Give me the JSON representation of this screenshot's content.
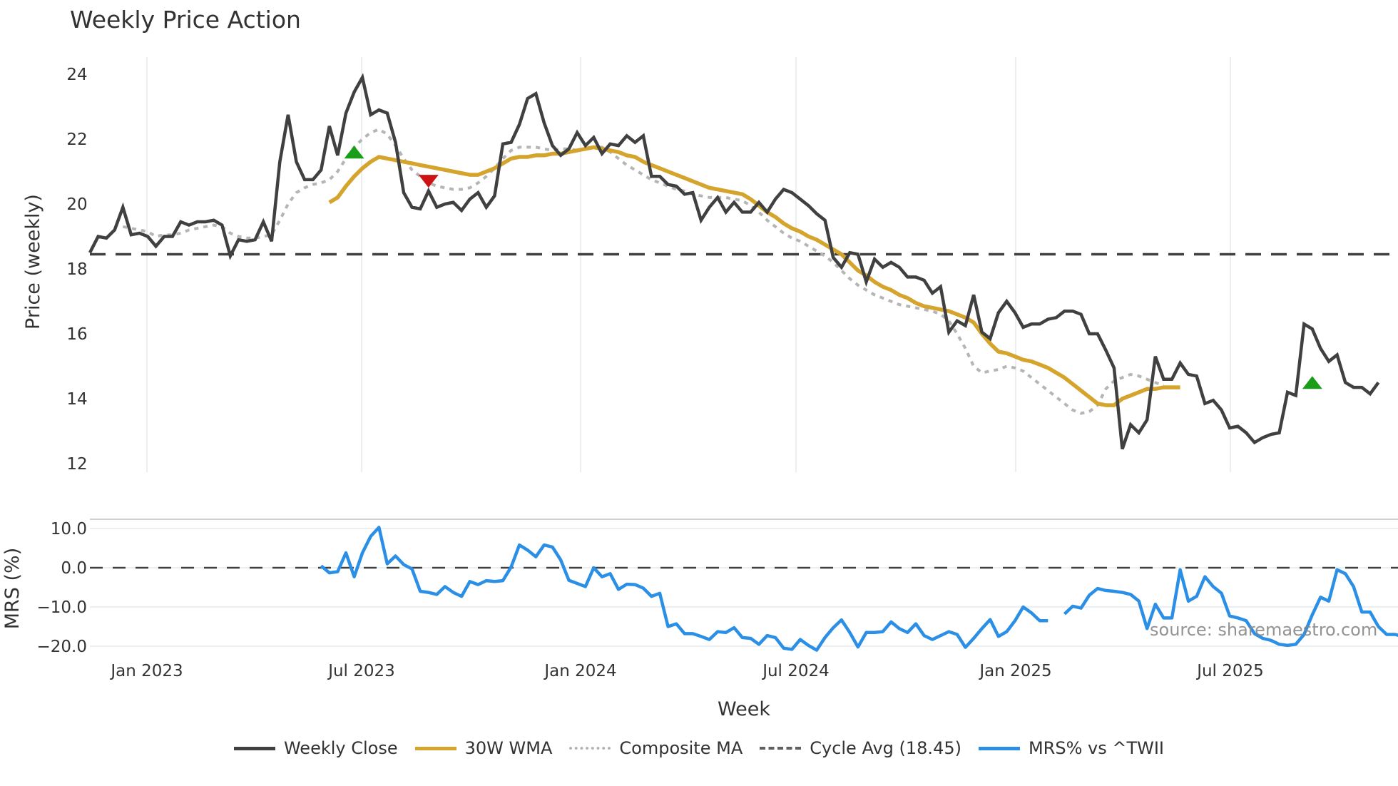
{
  "title": "Weekly Price Action",
  "source_note": "source: sharemaestro.com",
  "chart_data": [
    {
      "type": "line",
      "title": "Weekly Price Action",
      "xlabel": "Week",
      "ylabel": "Price (weekly)",
      "ylim": [
        11.7,
        24.5
      ],
      "yticks": [
        12,
        14,
        16,
        18,
        20,
        22,
        24
      ],
      "xticks": [
        "Jan 2023",
        "Jul 2023",
        "Jan 2024",
        "Jul 2024",
        "Jan 2025",
        "Jul 2025"
      ],
      "grid": true,
      "x_start_week_offset": -7,
      "series": [
        {
          "name": "Weekly Close",
          "color": "#404040",
          "values": [
            18.5,
            19.0,
            18.95,
            19.2,
            19.9,
            19.05,
            19.1,
            19.0,
            18.7,
            19.0,
            19.0,
            19.45,
            19.35,
            19.45,
            19.45,
            19.5,
            19.35,
            18.4,
            18.9,
            18.85,
            18.9,
            19.45,
            18.85,
            21.3,
            22.75,
            21.3,
            20.75,
            20.75,
            21.05,
            22.4,
            21.5,
            22.8,
            23.45,
            23.9,
            22.75,
            22.9,
            22.8,
            21.9,
            20.35,
            19.9,
            19.85,
            20.4,
            19.9,
            20.0,
            20.05,
            19.8,
            20.15,
            20.35,
            19.9,
            20.25,
            21.85,
            21.9,
            22.45,
            23.25,
            23.4,
            22.5,
            21.8,
            21.5,
            21.7,
            22.2,
            21.8,
            22.05,
            21.55,
            21.85,
            21.8,
            22.1,
            21.9,
            22.1,
            20.85,
            20.85,
            20.6,
            20.55,
            20.3,
            20.35,
            19.5,
            19.9,
            20.2,
            19.75,
            20.05,
            19.75,
            19.75,
            20.05,
            19.75,
            20.15,
            20.45,
            20.35,
            20.15,
            19.95,
            19.7,
            19.5,
            18.35,
            18.05,
            18.5,
            18.45,
            17.6,
            18.3,
            18.05,
            18.2,
            18.05,
            17.75,
            17.75,
            17.65,
            17.25,
            17.45,
            16.05,
            16.4,
            16.25,
            17.2,
            16.05,
            15.85,
            16.65,
            17.0,
            16.65,
            16.2,
            16.3,
            16.3,
            16.45,
            16.5,
            16.7,
            16.7,
            16.6,
            16.0,
            16.0,
            15.5,
            14.95,
            12.45,
            13.2,
            12.95,
            13.35,
            15.3,
            14.6,
            14.6,
            15.1,
            14.75,
            14.7,
            13.85,
            13.95,
            13.65,
            13.1,
            13.15,
            12.95,
            12.65,
            12.8,
            12.9,
            12.95,
            14.2,
            14.1,
            16.3,
            16.15,
            15.55,
            15.15,
            15.35,
            14.5,
            14.35,
            14.35,
            14.15,
            14.5
          ]
        },
        {
          "name": "30W WMA",
          "color": "#D4A42C",
          "start_index": 29,
          "values": [
            20.05,
            20.2,
            20.55,
            20.85,
            21.1,
            21.3,
            21.45,
            21.4,
            21.35,
            21.3,
            21.25,
            21.2,
            21.15,
            21.1,
            21.05,
            21.0,
            20.95,
            20.9,
            20.9,
            21.0,
            21.1,
            21.25,
            21.4,
            21.45,
            21.45,
            21.5,
            21.5,
            21.55,
            21.55,
            21.6,
            21.65,
            21.7,
            21.75,
            21.7,
            21.65,
            21.6,
            21.5,
            21.45,
            21.3,
            21.2,
            21.1,
            21.0,
            20.9,
            20.8,
            20.7,
            20.6,
            20.5,
            20.45,
            20.4,
            20.35,
            20.3,
            20.15,
            19.95,
            19.75,
            19.6,
            19.4,
            19.25,
            19.15,
            19.0,
            18.9,
            18.75,
            18.6,
            18.45,
            18.2,
            17.95,
            17.8,
            17.6,
            17.45,
            17.35,
            17.2,
            17.1,
            16.95,
            16.85,
            16.8,
            16.75,
            16.7,
            16.6,
            16.5,
            16.35,
            16.0,
            15.7,
            15.45,
            15.4,
            15.3,
            15.2,
            15.15,
            15.05,
            14.95,
            14.8,
            14.65,
            14.45,
            14.25,
            14.05,
            13.85,
            13.8,
            13.8,
            14.0,
            14.1,
            14.2,
            14.3,
            14.3,
            14.35,
            14.35,
            14.35
          ]
        },
        {
          "name": "Composite MA",
          "color": "#B5B5B5",
          "start_index": 4,
          "values": [
            19.3,
            19.25,
            19.2,
            19.15,
            19.0,
            19.05,
            19.05,
            19.1,
            19.2,
            19.25,
            19.3,
            19.35,
            19.3,
            19.1,
            19.0,
            18.95,
            18.95,
            19.0,
            19.05,
            19.5,
            20.0,
            20.35,
            20.5,
            20.6,
            20.65,
            20.75,
            21.0,
            21.4,
            21.75,
            22.0,
            22.2,
            22.3,
            22.15,
            21.8,
            21.4,
            21.05,
            20.85,
            20.65,
            20.55,
            20.5,
            20.45,
            20.45,
            20.5,
            20.65,
            20.85,
            21.1,
            21.4,
            21.65,
            21.75,
            21.75,
            21.75,
            21.7,
            21.65,
            21.7,
            21.7,
            21.65,
            21.7,
            21.75,
            21.75,
            21.6,
            21.4,
            21.2,
            21.05,
            20.9,
            20.75,
            20.65,
            20.55,
            20.45,
            20.4,
            20.3,
            20.25,
            20.2,
            20.2,
            20.2,
            20.15,
            20.1,
            19.95,
            19.75,
            19.5,
            19.3,
            19.1,
            18.95,
            18.85,
            18.7,
            18.55,
            18.4,
            18.2,
            17.95,
            17.7,
            17.5,
            17.35,
            17.2,
            17.1,
            17.0,
            16.9,
            16.85,
            16.8,
            16.75,
            16.7,
            16.6,
            16.4,
            16.0,
            15.55,
            15.0,
            14.8,
            14.85,
            14.9,
            15.0,
            14.95,
            14.85,
            14.65,
            14.45,
            14.25,
            14.05,
            13.85,
            13.65,
            13.55,
            13.6,
            13.8,
            14.3,
            14.55,
            14.65,
            14.75,
            14.7,
            14.6,
            14.5,
            14.4
          ]
        },
        {
          "name": "Cycle Avg (18.45)",
          "color": "#404040",
          "dash": "dashed",
          "constant": 18.45
        }
      ],
      "markers": [
        {
          "type": "buy",
          "shape": "triangle-up",
          "color": "#1A9E1A",
          "index": 32,
          "value": 21.6
        },
        {
          "type": "sell",
          "shape": "triangle-down",
          "color": "#CC1414",
          "index": 41,
          "value": 20.7
        },
        {
          "type": "buy",
          "shape": "triangle-up",
          "color": "#1A9E1A",
          "index": 148,
          "value": 14.5
        }
      ],
      "legend": [
        "Weekly Close",
        "30W WMA",
        "Composite MA",
        "Cycle Avg (18.45)",
        "MRS% vs ^TWII"
      ],
      "legend_position": "bottom"
    },
    {
      "type": "line",
      "ylabel": "MRS (%)",
      "ylim": [
        -22,
        12
      ],
      "yticks": [
        "10.0",
        "0.0",
        "−10.0",
        "−20.0"
      ],
      "ytick_values": [
        10,
        0,
        -10,
        -20
      ],
      "series": [
        {
          "name": "MRS% vs ^TWII",
          "color": "#2B8FE6",
          "start_index": 28,
          "values": [
            0.5,
            -1.3,
            -1.0,
            3.8,
            -2.3,
            3.8,
            8.0,
            10.3,
            1.0,
            3.0,
            0.8,
            -0.3,
            -6.0,
            -6.3,
            -6.8,
            -4.8,
            -6.3,
            -7.3,
            -3.5,
            -4.3,
            -3.3,
            -3.5,
            -3.3,
            0.2,
            5.8,
            4.5,
            2.8,
            5.8,
            5.3,
            2.0,
            -3.2,
            -4.0,
            -4.8,
            0.0,
            -2.3,
            -1.5,
            -5.5,
            -4.2,
            -4.3,
            -5.2,
            -7.3,
            -6.5,
            -15.0,
            -14.3,
            -16.8,
            -16.8,
            -17.5,
            -18.3,
            -16.3,
            -16.5,
            -15.3,
            -17.8,
            -18.0,
            -19.5,
            -17.3,
            -17.8,
            -20.5,
            -20.8,
            -18.3,
            -19.8,
            -21.0,
            -17.8,
            -15.3,
            -13.3,
            -16.5,
            -20.2,
            -16.5,
            -16.5,
            -16.3,
            -13.8,
            -15.5,
            -16.5,
            -14.3,
            -17.3,
            -18.3,
            -17.3,
            -16.3,
            -17.0,
            -20.3,
            -18.0,
            -15.5,
            -13.2,
            -17.5,
            -16.3,
            -13.5,
            -10.0,
            -11.5,
            -13.5,
            -13.5,
            null,
            -11.8,
            -9.8,
            -10.3,
            -7.0,
            -5.3,
            -5.8,
            -6.0,
            -6.3,
            -6.8,
            -8.5,
            -15.5,
            -9.3,
            -12.8,
            -12.8,
            -0.5,
            -8.5,
            -7.3,
            -2.3,
            -4.8,
            -6.5,
            -12.3,
            -12.8,
            -13.5,
            -16.8,
            -18.0,
            -18.5,
            -19.5,
            -19.8,
            -19.5,
            -17.0,
            -12.0,
            -7.5,
            -8.5,
            -0.5,
            -1.5,
            -4.8,
            -11.3,
            -11.3,
            -15.0,
            -17.0,
            -17.0,
            -17.5,
            -18.3,
            -14.0
          ]
        },
        {
          "name": "Zero line",
          "color": "#404040",
          "dash": "dashed",
          "constant": 0
        }
      ]
    }
  ]
}
